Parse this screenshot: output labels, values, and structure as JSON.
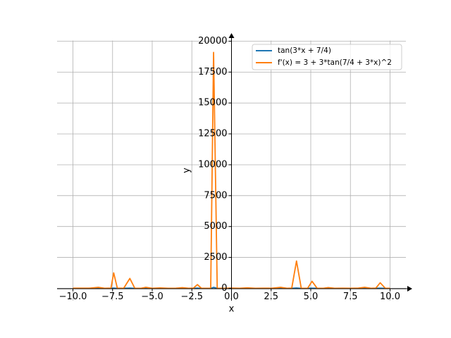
{
  "chart_data": {
    "type": "line",
    "x_label": "x",
    "y_label": "y",
    "x": [
      -10,
      -9,
      -8.4,
      -8,
      -7.6,
      -7.43,
      -7.2,
      -6.8,
      -6.41,
      -6.1,
      -5.7,
      -5.4,
      -5,
      -4.5,
      -4,
      -3.5,
      -3.1,
      -2.7,
      -2.4,
      -2.15,
      -1.9,
      -1.6,
      -1.31,
      -1.13,
      -0.9,
      -0.5,
      0,
      0.5,
      1,
      1.5,
      2,
      2.5,
      3.1,
      3.5,
      3.8,
      4.1,
      4.4,
      4.8,
      5.08,
      5.4,
      5.8,
      6.1,
      6.5,
      7,
      7.5,
      8,
      8.4,
      8.8,
      9.1,
      9.38,
      9.7,
      10
    ],
    "series": [
      {
        "name": "tan(3*x + 7/4)",
        "color": "#1f77b4",
        "values": [
          2,
          -1,
          8,
          -2,
          4,
          20,
          -3,
          1,
          16,
          -2,
          1,
          8,
          -2,
          5,
          0,
          3,
          7,
          -1,
          4,
          17,
          -2,
          0,
          -2,
          80,
          2,
          0,
          4,
          -1,
          6,
          1,
          3,
          -1,
          8,
          1,
          3,
          27,
          -2,
          1,
          13,
          2,
          -1,
          7,
          1,
          3,
          0,
          4,
          8,
          1,
          3,
          12,
          -2,
          1
        ]
      },
      {
        "name": "f'(x) = 3 + 3*tan(7/4 + 3*x)^2",
        "color": "#ff7f0e",
        "values": [
          10,
          8,
          80,
          5,
          20,
          1250,
          15,
          6,
          800,
          10,
          5,
          80,
          6,
          30,
          4,
          12,
          50,
          4,
          20,
          300,
          8,
          4,
          5,
          19090,
          10,
          4,
          20,
          6,
          40,
          5,
          10,
          6,
          80,
          5,
          15,
          2210,
          10,
          5,
          570,
          8,
          5,
          60,
          6,
          10,
          5,
          20,
          80,
          5,
          15,
          450,
          8,
          6
        ]
      }
    ],
    "xlim": [
      -11,
      11
    ],
    "ylim": [
      -1000,
      20050
    ],
    "xticks": [
      {
        "value": -10,
        "label": "−10.0"
      },
      {
        "value": -7.5,
        "label": "−7.5"
      },
      {
        "value": -5,
        "label": "−5.0"
      },
      {
        "value": -2.5,
        "label": "−2.5"
      },
      {
        "value": 0,
        "label": "0.0"
      },
      2.5,
      {
        "value": 5,
        "label": "5.0"
      },
      7.5,
      {
        "value": 10,
        "label": "10.0"
      }
    ],
    "yticks": [
      0,
      2500,
      5000,
      7500,
      10000,
      12500,
      15000,
      17500,
      20000
    ],
    "grid": true,
    "legend": "upper right"
  }
}
